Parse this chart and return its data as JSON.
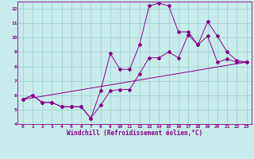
{
  "xlabel": "Windchill (Refroidissement éolien,°C)",
  "xlim": [
    -0.5,
    23.5
  ],
  "ylim": [
    4,
    12.5
  ],
  "xticks": [
    0,
    1,
    2,
    3,
    4,
    5,
    6,
    7,
    8,
    9,
    10,
    11,
    12,
    13,
    14,
    15,
    16,
    17,
    18,
    19,
    20,
    21,
    22,
    23
  ],
  "yticks": [
    4,
    5,
    6,
    7,
    8,
    9,
    10,
    11,
    12
  ],
  "bg_color": "#c8ecec",
  "line_color": "#880088",
  "grid_color": "#99cccc",
  "line1_x": [
    0,
    1,
    2,
    3,
    4,
    5,
    6,
    7,
    8,
    9,
    10,
    11,
    12,
    13,
    14,
    15,
    16,
    17,
    18,
    19,
    20,
    21,
    22,
    23
  ],
  "line1_y": [
    5.7,
    6.0,
    5.5,
    5.5,
    5.2,
    5.2,
    5.2,
    4.4,
    5.3,
    6.3,
    6.4,
    6.4,
    7.5,
    8.6,
    8.6,
    9.0,
    8.6,
    10.2,
    9.5,
    10.1,
    8.3,
    8.5,
    8.3,
    8.3
  ],
  "line2_x": [
    0,
    1,
    2,
    3,
    4,
    5,
    6,
    7,
    8,
    9,
    10,
    11,
    12,
    13,
    14,
    15,
    16,
    17,
    18,
    19,
    20,
    21,
    22,
    23
  ],
  "line2_y": [
    5.7,
    6.0,
    5.5,
    5.5,
    5.2,
    5.2,
    5.2,
    4.4,
    6.3,
    8.9,
    7.8,
    7.8,
    9.5,
    12.2,
    12.4,
    12.2,
    10.4,
    10.4,
    9.5,
    11.1,
    10.1,
    9.0,
    8.4,
    8.3
  ],
  "line3_x": [
    0,
    23
  ],
  "line3_y": [
    5.7,
    8.3
  ]
}
